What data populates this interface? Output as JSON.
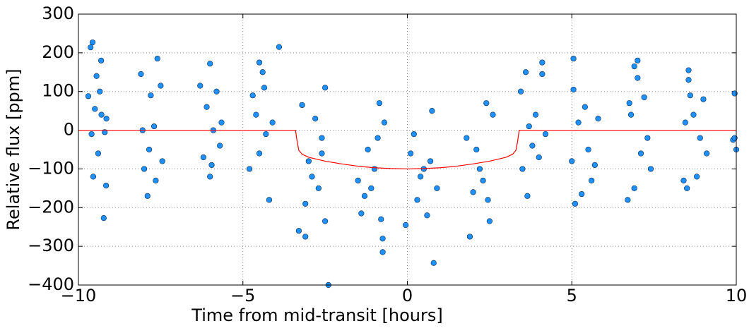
{
  "chart_data": {
    "type": "scatter",
    "xlabel": "Time from mid-transit [hours]",
    "ylabel": "Relative flux [ppm]",
    "xlim": [
      -10,
      10
    ],
    "ylim": [
      -400,
      300
    ],
    "xticks": [
      {
        "value": -10,
        "label": "−10"
      },
      {
        "value": -5,
        "label": "−5"
      },
      0,
      5,
      10
    ],
    "yticks": [
      {
        "value": -400,
        "label": "−400"
      },
      {
        "value": -300,
        "label": "−300"
      },
      {
        "value": -200,
        "label": "−200"
      },
      {
        "value": -100,
        "label": "−100"
      },
      0,
      100,
      200,
      300
    ],
    "grid": true,
    "series": [
      {
        "style": "markers",
        "color": "#1e90ff",
        "x": [
          -9.57,
          -9.63,
          -9.23,
          -9.16,
          -9.31,
          -9.7,
          -9.6,
          -9.5,
          -9.4,
          -9.3,
          -9.2,
          -9.45,
          -9.55,
          -9.35,
          -9.15,
          -8.1,
          -7.6,
          -7.9,
          -8.0,
          -7.8,
          -7.7,
          -7.5,
          -7.45,
          -8.05,
          -7.85,
          -7.65,
          -6.0,
          -6.3,
          -6.2,
          -6.0,
          -5.8,
          -5.9,
          -5.7,
          -6.1,
          -5.65,
          -5.95,
          -4.5,
          -4.4,
          -3.9,
          -4.7,
          -4.6,
          -4.3,
          -4.5,
          -4.2,
          -4.8,
          -4.1,
          -4.35,
          -3.3,
          -3.1,
          -2.4,
          -2.5,
          -2.5,
          -3.2,
          -2.9,
          -2.7,
          -3.0,
          -2.6,
          -2.8,
          -3.1,
          -2.6,
          -1.4,
          -0.75,
          -0.75,
          -0.85,
          -1.2,
          -1.0,
          -1.5,
          -1.3,
          -0.9,
          -0.7,
          -1.1,
          -0.8,
          0.8,
          0.75,
          -0.05,
          0.3,
          0.5,
          0.1,
          0.6,
          0.2,
          0.9,
          0.4,
          0.7,
          1.9,
          2.5,
          2.4,
          1.8,
          2.0,
          2.2,
          2.3,
          2.6,
          2.1,
          2.45,
          3.45,
          3.6,
          3.65,
          4.1,
          4.1,
          3.8,
          3.9,
          3.5,
          4.0,
          3.7,
          4.2,
          5.05,
          5.05,
          5.1,
          5.3,
          5.4,
          5.5,
          5.7,
          5.2,
          5.6,
          5.8,
          5.0,
          7.0,
          6.9,
          7.0,
          6.7,
          6.9,
          7.2,
          7.3,
          7.4,
          6.8,
          7.1,
          6.75,
          8.55,
          8.55,
          8.6,
          8.4,
          8.5,
          8.8,
          9.0,
          8.9,
          8.7,
          9.1,
          8.45,
          9.95,
          9.9,
          10.0,
          9.95
        ],
        "values": [
          227,
          214,
          -227,
          -143,
          180,
          88,
          -10,
          55,
          -60,
          40,
          -5,
          140,
          -120,
          100,
          30,
          145,
          185,
          -170,
          -100,
          90,
          10,
          115,
          -80,
          0,
          -50,
          -130,
          172,
          115,
          -70,
          -120,
          100,
          0,
          -40,
          60,
          20,
          -90,
          175,
          150,
          215,
          90,
          40,
          -10,
          -60,
          -180,
          -100,
          20,
          110,
          -260,
          -275,
          -400,
          -235,
          110,
          65,
          -120,
          -150,
          -80,
          -20,
          30,
          -190,
          -60,
          -215,
          -315,
          -280,
          70,
          -50,
          -100,
          -130,
          -170,
          -20,
          20,
          -150,
          -230,
          -343,
          50,
          -245,
          -180,
          -100,
          -60,
          -220,
          -10,
          -150,
          -120,
          -80,
          -275,
          -235,
          70,
          -20,
          -160,
          -100,
          -130,
          40,
          -50,
          -180,
          100,
          150,
          -170,
          175,
          145,
          -40,
          40,
          -100,
          -70,
          10,
          -10,
          185,
          105,
          -190,
          -165,
          60,
          -50,
          -90,
          20,
          -130,
          30,
          -80,
          180,
          165,
          135,
          -180,
          -150,
          85,
          -20,
          -100,
          40,
          -60,
          70,
          155,
          130,
          90,
          -130,
          -150,
          -120,
          80,
          -20,
          40,
          -60,
          20,
          95,
          -25,
          -50,
          -20
        ]
      },
      {
        "style": "line",
        "color": "#ff0000",
        "x": [
          -10,
          -3.4,
          -3.35,
          -3.3,
          -3.2,
          -3.0,
          -2.5,
          -2.0,
          -1.5,
          -1.0,
          -0.5,
          0,
          0.5,
          1.0,
          1.5,
          2.0,
          2.5,
          3.0,
          3.2,
          3.3,
          3.35,
          3.4,
          10
        ],
        "values": [
          0,
          0,
          -30,
          -52,
          -62,
          -70,
          -80,
          -87,
          -93,
          -97,
          -99,
          -100,
          -99,
          -97,
          -93,
          -87,
          -80,
          -70,
          -62,
          -52,
          -30,
          0,
          0
        ]
      }
    ]
  }
}
